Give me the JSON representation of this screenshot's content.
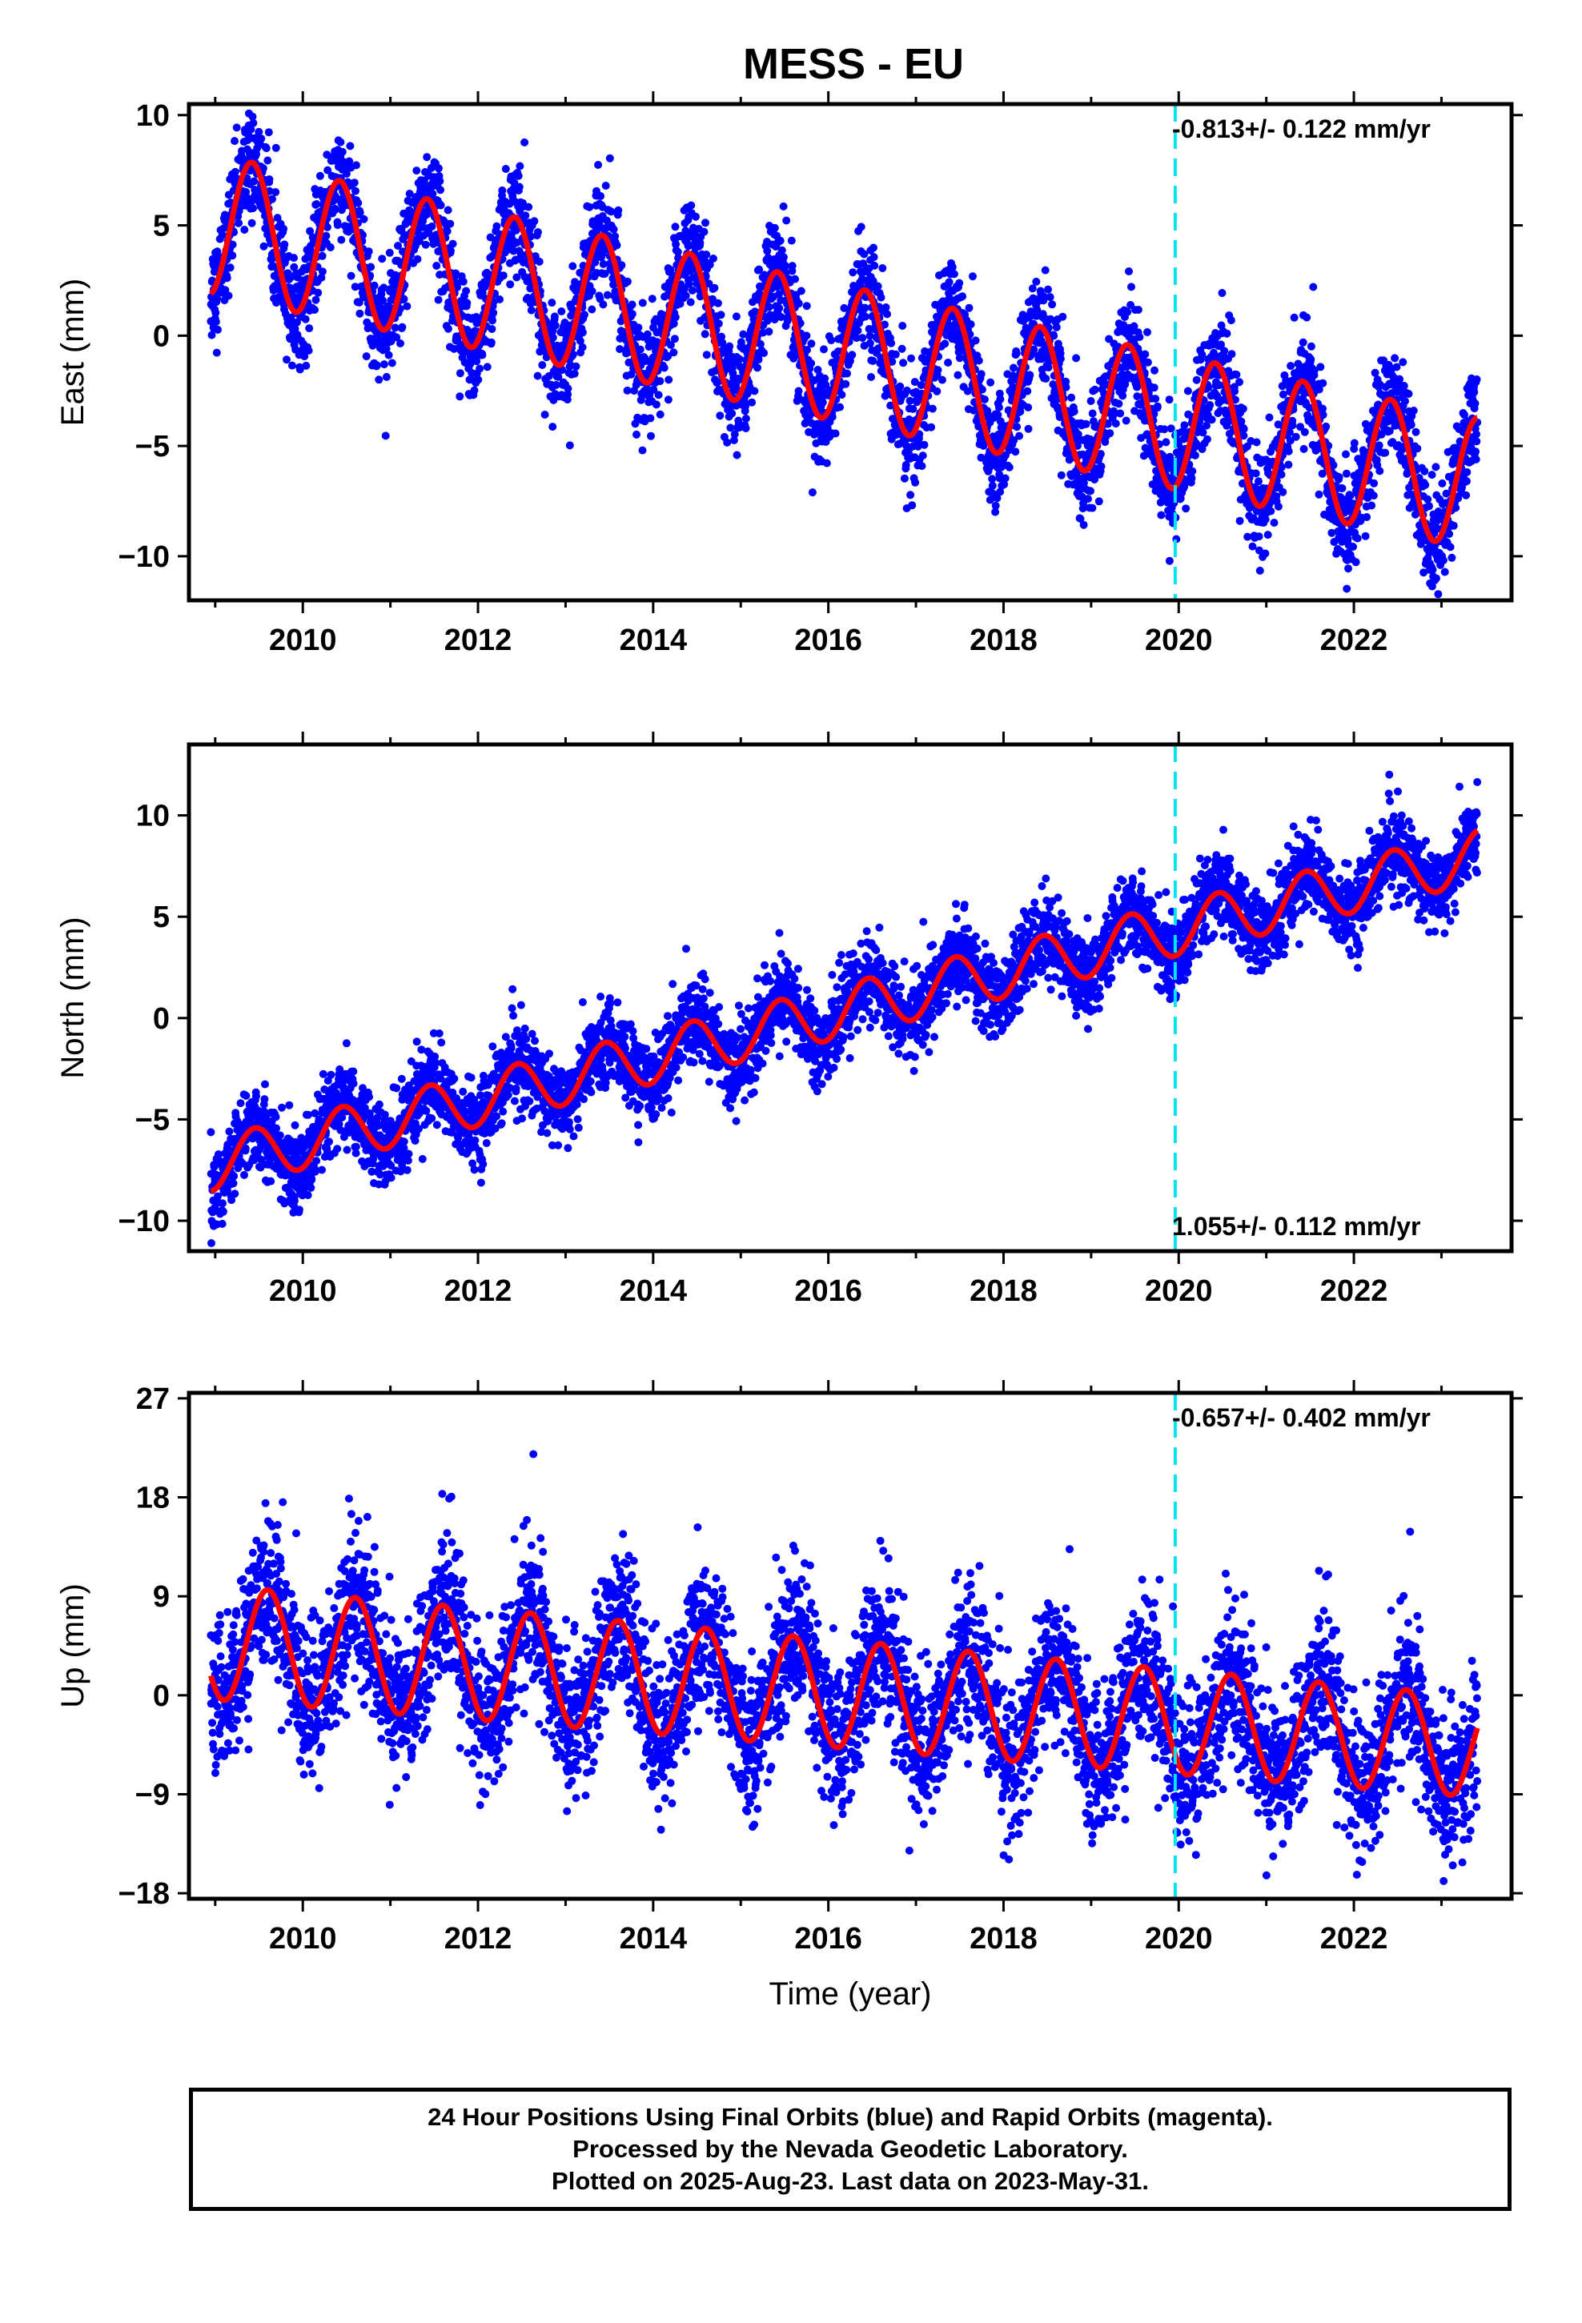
{
  "chart_data": [
    {
      "type": "scatter",
      "panel": "east",
      "title": "MESS - EU",
      "xlabel": "",
      "ylabel": "East (mm)",
      "xlim": [
        2008.7,
        2023.8
      ],
      "ylim": [
        -12,
        10.5
      ],
      "yticks": [
        10,
        5,
        0,
        -5,
        -10
      ],
      "xticks": [
        2010,
        2012,
        2014,
        2016,
        2018,
        2020,
        2022
      ],
      "rate_text": "-0.813+/- 0.122 mm/yr",
      "rate_position": "top-right",
      "grid": false,
      "start_year": 2008.95,
      "end_year": 2023.41,
      "reference_epoch": 2019.96,
      "trend_intercept_at_2009": 5.0,
      "trend_slope_mm_per_yr": -0.813,
      "annual_amplitude": [
        3.2,
        3.0
      ],
      "annual_peak_phase": 0.42,
      "noise": 1.2,
      "series": [
        {
          "name": "Final Orbits",
          "color": "#0000ff",
          "marker": "dot"
        },
        {
          "name": "Model",
          "color": "#ff0000",
          "marker": "line"
        },
        {
          "name": "Epoch",
          "color": "#00e5ee",
          "marker": "dashed-line"
        }
      ]
    },
    {
      "type": "scatter",
      "panel": "north",
      "xlabel": "",
      "ylabel": "North (mm)",
      "xlim": [
        2008.7,
        2023.8
      ],
      "ylim": [
        -11.5,
        13.5
      ],
      "yticks": [
        10,
        5,
        0,
        -5,
        -10
      ],
      "xticks": [
        2010,
        2012,
        2014,
        2016,
        2018,
        2020,
        2022
      ],
      "rate_text": "1.055+/- 0.112 mm/yr",
      "rate_position": "bottom-right",
      "grid": false,
      "start_year": 2008.95,
      "end_year": 2023.41,
      "reference_epoch": 2019.96,
      "trend_intercept_at_2009": -7.2,
      "trend_slope_mm_per_yr": 1.055,
      "annual_amplitude": [
        1.3,
        1.3
      ],
      "annual_peak_phase": 0.45,
      "noise": 1.0,
      "series": [
        {
          "name": "Final Orbits",
          "color": "#0000ff",
          "marker": "dot"
        },
        {
          "name": "Model",
          "color": "#ff0000",
          "marker": "line"
        },
        {
          "name": "Epoch",
          "color": "#00e5ee",
          "marker": "dashed-line"
        }
      ]
    },
    {
      "type": "scatter",
      "panel": "up",
      "xlabel": "Time (year)",
      "ylabel": "Up (mm)",
      "xlim": [
        2008.7,
        2023.8
      ],
      "ylim": [
        -18.5,
        27.5
      ],
      "yticks": [
        27,
        18,
        9,
        0,
        -9,
        -18
      ],
      "xticks": [
        2010,
        2012,
        2014,
        2016,
        2018,
        2020,
        2022
      ],
      "rate_text": "-0.657+/- 0.402 mm/yr",
      "rate_position": "top-right",
      "grid": false,
      "start_year": 2008.95,
      "end_year": 2023.41,
      "reference_epoch": 2019.96,
      "trend_intercept_at_2009": 4.8,
      "trend_slope_mm_per_yr": -0.657,
      "annual_amplitude": [
        5.2,
        4.6
      ],
      "annual_peak_phase": 0.6,
      "noise": 3.4,
      "series": [
        {
          "name": "Final Orbits",
          "color": "#0000ff",
          "marker": "dot"
        },
        {
          "name": "Model",
          "color": "#ff0000",
          "marker": "line"
        },
        {
          "name": "Epoch",
          "color": "#00e5ee",
          "marker": "dashed-line"
        }
      ]
    }
  ],
  "footer": {
    "line1": "24 Hour Positions Using Final Orbits (blue) and Rapid Orbits (magenta).",
    "line2": "Processed by the Nevada Geodetic Laboratory.",
    "line3": "Plotted on 2025-Aug-23. Last data on 2023-May-31."
  },
  "colors": {
    "points": "#0000ff",
    "model": "#ff0000",
    "epoch_line": "#00e5ee",
    "frame": "#000000"
  }
}
